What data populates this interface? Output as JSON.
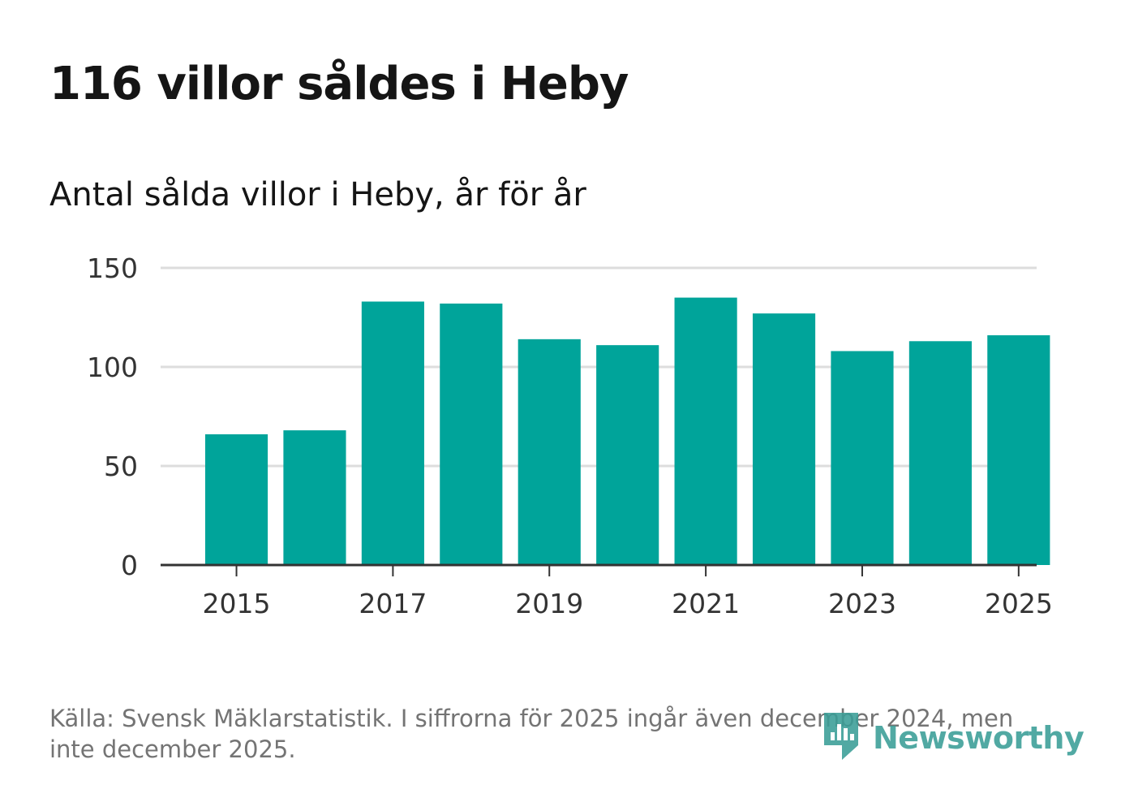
{
  "title": "116 villor såldes i Heby",
  "subtitle": "Antal sålda villor i Heby, år för år",
  "source": "Källa: Svensk Mäklarstatistik. I siffrorna för 2025 ingår även december 2024, men inte december 2025.",
  "brand": {
    "name": "Newsworthy",
    "color": "#3a9e97",
    "icon": "newsworthy-logo-icon"
  },
  "colors": {
    "bar": "#00a49a",
    "grid": "#dddddd",
    "axis": "#333333",
    "text": "#151515",
    "tick": "#333333"
  },
  "chart_data": {
    "type": "bar",
    "categories": [
      "2015",
      "2016",
      "2017",
      "2018",
      "2019",
      "2020",
      "2021",
      "2022",
      "2023",
      "2024",
      "2025"
    ],
    "values": [
      66,
      68,
      133,
      132,
      114,
      111,
      135,
      127,
      108,
      113,
      116
    ],
    "x_tick_labels": [
      "2015",
      "2017",
      "2019",
      "2021",
      "2023",
      "2025"
    ],
    "y_ticks": [
      0,
      50,
      100,
      150
    ],
    "ylim": [
      0,
      150
    ],
    "xlabel": "",
    "ylabel": "",
    "grid": true,
    "legend": "none"
  }
}
